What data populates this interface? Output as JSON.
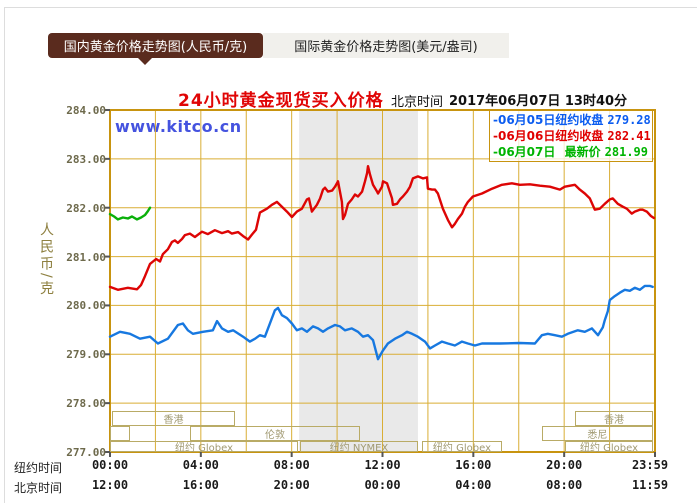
{
  "page": {
    "background": "#ffffff",
    "accent_gold_border": "#c8940f",
    "accent_gold_grid": "#d9ae35"
  },
  "tabs": [
    {
      "label": "国内黄金价格走势图(人民币/克)",
      "active": true,
      "bg": "#5a2b1e",
      "fg": "#ffffff"
    },
    {
      "label": "国际黄金价格走势图(美元/盎司)",
      "active": false,
      "bg": "#f1f0ec",
      "fg": "#222222"
    }
  ],
  "header": {
    "title": "24小时黄金现货买入价格",
    "title_color": "#e00505",
    "time_zone_label": "北京时间",
    "datetime": "2017年06月07日 13时40分",
    "watermark": "www.kitco.cn",
    "watermark_color": "#4553df"
  },
  "legend": {
    "rows": [
      {
        "date": "-06月05日",
        "name": "纽约收盘",
        "value": "279.28",
        "color": "#0b5cf0"
      },
      {
        "date": "-06月06日",
        "name": "纽约收盘",
        "value": "282.41",
        "color": "#e00000"
      },
      {
        "date": "-06月07日",
        "name": "最新价",
        "value": "281.99",
        "color": "#00b400"
      }
    ]
  },
  "axes": {
    "y_unit": "人民币/克",
    "y_ticks": [
      "284.00",
      "283.00",
      "282.00",
      "281.00",
      "280.00",
      "279.00",
      "278.00",
      "277.00"
    ],
    "x_prefix_ny": "纽约时间",
    "x_prefix_bj": "北京时间",
    "x_ticks_ny": [
      "00:00",
      "04:00",
      "08:00",
      "12:00",
      "16:00",
      "20:00",
      "23:59"
    ],
    "x_ticks_bj": [
      "12:00",
      "16:00",
      "20:00",
      "00:00",
      "04:00",
      "08:00",
      "11:59"
    ]
  },
  "chart_data": {
    "type": "line",
    "title": "24小时黄金现货买入价格",
    "xlabel": "纽约时间 00:00–23:59 (北京时间 12:00–11:59)",
    "ylabel": "人民币/克",
    "x_range_hours": [
      0,
      24
    ],
    "ylim": [
      277,
      284
    ],
    "y_tick_step": 1,
    "grid_every_hours": 2,
    "legend_position": "top-right",
    "shaded_band_hours": [
      8.33,
      13.56
    ],
    "shaded_band_color": "#e9e9e9",
    "series": [
      {
        "name": "06月05日 纽约收盘",
        "close": 279.28,
        "color": "#1778e0",
        "points": [
          [
            0,
            279.36
          ],
          [
            0.44,
            279.46
          ],
          [
            0.88,
            279.42
          ],
          [
            1.32,
            279.32
          ],
          [
            1.76,
            279.36
          ],
          [
            2.11,
            279.22
          ],
          [
            2.55,
            279.32
          ],
          [
            2.99,
            279.6
          ],
          [
            3.21,
            279.63
          ],
          [
            3.43,
            279.49
          ],
          [
            3.65,
            279.42
          ],
          [
            4.09,
            279.46
          ],
          [
            4.53,
            279.49
          ],
          [
            4.71,
            279.68
          ],
          [
            4.93,
            279.53
          ],
          [
            5.2,
            279.46
          ],
          [
            5.42,
            279.49
          ],
          [
            5.86,
            279.36
          ],
          [
            6.16,
            279.26
          ],
          [
            6.39,
            279.32
          ],
          [
            6.6,
            279.39
          ],
          [
            6.82,
            279.36
          ],
          [
            7.26,
            279.9
          ],
          [
            7.4,
            279.95
          ],
          [
            7.57,
            279.8
          ],
          [
            7.79,
            279.74
          ],
          [
            8.01,
            279.63
          ],
          [
            8.23,
            279.49
          ],
          [
            8.45,
            279.53
          ],
          [
            8.67,
            279.46
          ],
          [
            8.94,
            279.57
          ],
          [
            9.16,
            279.53
          ],
          [
            9.38,
            279.46
          ],
          [
            9.6,
            279.53
          ],
          [
            9.91,
            279.6
          ],
          [
            10.13,
            279.57
          ],
          [
            10.35,
            279.49
          ],
          [
            10.65,
            279.53
          ],
          [
            10.92,
            279.46
          ],
          [
            11.14,
            279.36
          ],
          [
            11.36,
            279.39
          ],
          [
            11.58,
            279.29
          ],
          [
            11.8,
            278.9
          ],
          [
            12.02,
            279.08
          ],
          [
            12.24,
            279.22
          ],
          [
            12.55,
            279.32
          ],
          [
            12.86,
            279.39
          ],
          [
            13.08,
            279.46
          ],
          [
            13.3,
            279.42
          ],
          [
            13.56,
            279.36
          ],
          [
            13.87,
            279.26
          ],
          [
            14.09,
            279.12
          ],
          [
            14.31,
            279.18
          ],
          [
            14.62,
            279.26
          ],
          [
            14.88,
            279.22
          ],
          [
            15.19,
            279.18
          ],
          [
            15.5,
            279.26
          ],
          [
            15.76,
            279.22
          ],
          [
            16.07,
            279.18
          ],
          [
            16.38,
            279.22
          ],
          [
            17.17,
            279.22
          ],
          [
            18.05,
            279.23
          ],
          [
            18.71,
            279.22
          ],
          [
            19.02,
            279.39
          ],
          [
            19.28,
            279.42
          ],
          [
            19.59,
            279.39
          ],
          [
            19.9,
            279.36
          ],
          [
            20.16,
            279.42
          ],
          [
            20.6,
            279.49
          ],
          [
            20.91,
            279.46
          ],
          [
            21.22,
            279.53
          ],
          [
            21.49,
            279.39
          ],
          [
            21.57,
            279.45
          ],
          [
            21.7,
            279.55
          ],
          [
            21.79,
            279.7
          ],
          [
            21.92,
            279.88
          ],
          [
            22.01,
            280.11
          ],
          [
            22.23,
            280.19
          ],
          [
            22.45,
            280.26
          ],
          [
            22.67,
            280.32
          ],
          [
            22.89,
            280.3
          ],
          [
            23.11,
            280.36
          ],
          [
            23.33,
            280.32
          ],
          [
            23.55,
            280.4
          ],
          [
            23.77,
            280.4
          ],
          [
            23.9,
            280.38
          ]
        ]
      },
      {
        "name": "06月06日 纽约收盘",
        "close": 282.41,
        "color": "#dd0505",
        "points": [
          [
            0,
            280.38
          ],
          [
            0.35,
            280.32
          ],
          [
            0.79,
            280.36
          ],
          [
            1.19,
            280.33
          ],
          [
            1.37,
            280.42
          ],
          [
            1.54,
            280.6
          ],
          [
            1.76,
            280.85
          ],
          [
            2.03,
            280.95
          ],
          [
            2.2,
            280.9
          ],
          [
            2.33,
            281.05
          ],
          [
            2.55,
            281.15
          ],
          [
            2.73,
            281.3
          ],
          [
            2.86,
            281.33
          ],
          [
            2.99,
            281.28
          ],
          [
            3.17,
            281.36
          ],
          [
            3.3,
            281.44
          ],
          [
            3.52,
            281.47
          ],
          [
            3.74,
            281.4
          ],
          [
            4.05,
            281.51
          ],
          [
            4.31,
            281.46
          ],
          [
            4.62,
            281.54
          ],
          [
            4.93,
            281.48
          ],
          [
            5.2,
            281.52
          ],
          [
            5.37,
            281.47
          ],
          [
            5.64,
            281.5
          ],
          [
            5.86,
            281.42
          ],
          [
            6.08,
            281.35
          ],
          [
            6.25,
            281.45
          ],
          [
            6.43,
            281.55
          ],
          [
            6.6,
            281.9
          ],
          [
            6.91,
            281.98
          ],
          [
            7.13,
            282.06
          ],
          [
            7.35,
            282.12
          ],
          [
            7.57,
            282.02
          ],
          [
            7.79,
            281.92
          ],
          [
            8.01,
            281.81
          ],
          [
            8.23,
            281.92
          ],
          [
            8.45,
            281.98
          ],
          [
            8.67,
            282.17
          ],
          [
            8.76,
            282.19
          ],
          [
            8.89,
            281.92
          ],
          [
            9.11,
            282.06
          ],
          [
            9.25,
            282.19
          ],
          [
            9.38,
            282.37
          ],
          [
            9.47,
            282.41
          ],
          [
            9.6,
            282.33
          ],
          [
            9.78,
            282.35
          ],
          [
            9.91,
            282.43
          ],
          [
            10.04,
            282.54
          ],
          [
            10.21,
            282.12
          ],
          [
            10.26,
            281.77
          ],
          [
            10.35,
            281.85
          ],
          [
            10.48,
            282.08
          ],
          [
            10.65,
            282.17
          ],
          [
            10.79,
            282.27
          ],
          [
            10.92,
            282.23
          ],
          [
            11.1,
            282.33
          ],
          [
            11.23,
            282.54
          ],
          [
            11.32,
            282.71
          ],
          [
            11.36,
            282.85
          ],
          [
            11.45,
            282.68
          ],
          [
            11.58,
            282.47
          ],
          [
            11.76,
            282.33
          ],
          [
            11.8,
            282.29
          ],
          [
            11.98,
            282.43
          ],
          [
            12.02,
            282.54
          ],
          [
            12.2,
            282.5
          ],
          [
            12.42,
            282.19
          ],
          [
            12.46,
            282.06
          ],
          [
            12.64,
            282.08
          ],
          [
            12.77,
            282.17
          ],
          [
            12.9,
            282.23
          ],
          [
            13.08,
            282.33
          ],
          [
            13.21,
            282.43
          ],
          [
            13.34,
            282.6
          ],
          [
            13.56,
            282.64
          ],
          [
            13.78,
            282.6
          ],
          [
            13.96,
            282.62
          ],
          [
            14.0,
            282.39
          ],
          [
            14.18,
            282.37
          ],
          [
            14.31,
            282.37
          ],
          [
            14.44,
            282.29
          ],
          [
            14.66,
            281.98
          ],
          [
            14.88,
            281.75
          ],
          [
            15.06,
            281.6
          ],
          [
            15.19,
            281.67
          ],
          [
            15.32,
            281.77
          ],
          [
            15.5,
            281.88
          ],
          [
            15.63,
            282.02
          ],
          [
            15.76,
            282.12
          ],
          [
            15.98,
            282.23
          ],
          [
            16.38,
            282.29
          ],
          [
            16.82,
            282.39
          ],
          [
            17.26,
            282.47
          ],
          [
            17.7,
            282.5
          ],
          [
            18.05,
            282.47
          ],
          [
            18.49,
            282.48
          ],
          [
            18.93,
            282.45
          ],
          [
            19.37,
            282.43
          ],
          [
            19.81,
            282.37
          ],
          [
            20.03,
            282.43
          ],
          [
            20.47,
            282.47
          ],
          [
            20.69,
            282.37
          ],
          [
            20.91,
            282.29
          ],
          [
            21.13,
            282.19
          ],
          [
            21.35,
            281.96
          ],
          [
            21.57,
            281.98
          ],
          [
            21.79,
            282.08
          ],
          [
            22.01,
            282.17
          ],
          [
            22.14,
            282.19
          ],
          [
            22.36,
            282.08
          ],
          [
            22.58,
            282.02
          ],
          [
            22.76,
            281.98
          ],
          [
            22.98,
            281.88
          ],
          [
            23.11,
            281.92
          ],
          [
            23.33,
            281.96
          ],
          [
            23.46,
            281.96
          ],
          [
            23.64,
            281.92
          ],
          [
            23.82,
            281.83
          ],
          [
            23.95,
            281.79
          ]
        ]
      },
      {
        "name": "06月07日 最新价",
        "latest": 281.99,
        "color": "#0ab00a",
        "points": [
          [
            0,
            281.87
          ],
          [
            0.18,
            281.82
          ],
          [
            0.35,
            281.76
          ],
          [
            0.57,
            281.8
          ],
          [
            0.79,
            281.78
          ],
          [
            0.97,
            281.82
          ],
          [
            1.19,
            281.76
          ],
          [
            1.37,
            281.8
          ],
          [
            1.54,
            281.85
          ],
          [
            1.67,
            281.93
          ],
          [
            1.76,
            282.0
          ]
        ]
      }
    ],
    "sessions": [
      {
        "row": 1,
        "label": "香港",
        "hours": [
          0.09,
          5.5
        ]
      },
      {
        "row": 1,
        "label": "香港",
        "hours": [
          20.48,
          23.91
        ]
      },
      {
        "row": 2,
        "label": "",
        "hours": [
          0.0,
          0.88
        ]
      },
      {
        "row": 2,
        "label": "伦敦",
        "hours": [
          3.52,
          11.01
        ]
      },
      {
        "row": 2,
        "label": "悉尼",
        "hours": [
          19.02,
          23.91
        ]
      },
      {
        "row": 3,
        "label": "纽约 Globex",
        "hours": [
          0.0,
          8.28
        ]
      },
      {
        "row": 3,
        "label": "纽约 NYMEX",
        "hours": [
          8.37,
          13.56
        ]
      },
      {
        "row": 3,
        "label": "纽约 Globex",
        "hours": [
          13.74,
          17.26
        ]
      },
      {
        "row": 3,
        "label": "纽约 Globex",
        "hours": [
          20.04,
          23.91
        ]
      }
    ]
  }
}
